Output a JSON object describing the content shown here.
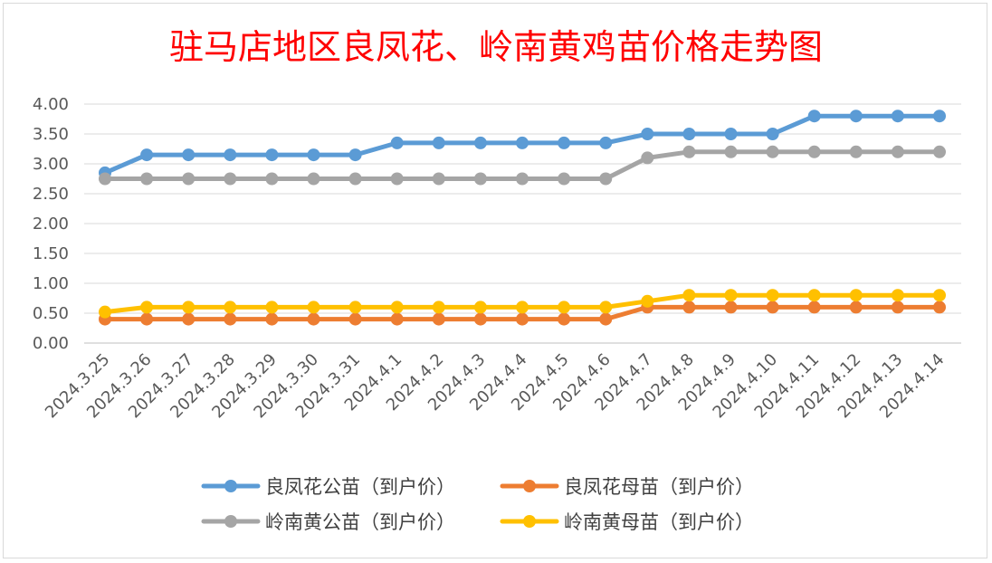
{
  "chart_data": {
    "type": "line",
    "title": "驻马店地区良凤花、岭南黄鸡苗价格走势图",
    "categories": [
      "2024.3.25",
      "2024.3.26",
      "2024.3.27",
      "2024.3.28",
      "2024.3.29",
      "2024.3.30",
      "2024.3.31",
      "2024.4.1",
      "2024.4.2",
      "2024.4.3",
      "2024.4.4",
      "2024.4.5",
      "2024.4.6",
      "2024.4.7",
      "2024.4.8",
      "2024.4.9",
      "2024.4.10",
      "2024.4.11",
      "2024.4.12",
      "2024.4.13",
      "2024.4.14"
    ],
    "ylim": [
      0,
      4
    ],
    "yticks": [
      "0.00",
      "0.50",
      "1.00",
      "1.50",
      "2.00",
      "2.50",
      "3.00",
      "3.50",
      "4.00"
    ],
    "grid": true,
    "legend_position": "bottom",
    "series": [
      {
        "name": "良凤花公苗（到户价）",
        "color": "#5b9bd5",
        "values": [
          2.85,
          3.15,
          3.15,
          3.15,
          3.15,
          3.15,
          3.15,
          3.35,
          3.35,
          3.35,
          3.35,
          3.35,
          3.35,
          3.5,
          3.5,
          3.5,
          3.5,
          3.8,
          3.8,
          3.8,
          3.8
        ]
      },
      {
        "name": "良凤花母苗（到户价）",
        "color": "#ed7d31",
        "values": [
          0.4,
          0.4,
          0.4,
          0.4,
          0.4,
          0.4,
          0.4,
          0.4,
          0.4,
          0.4,
          0.4,
          0.4,
          0.4,
          0.6,
          0.6,
          0.6,
          0.6,
          0.6,
          0.6,
          0.6,
          0.6
        ]
      },
      {
        "name": "岭南黄公苗（到户价）",
        "color": "#a5a5a5",
        "values": [
          2.75,
          2.75,
          2.75,
          2.75,
          2.75,
          2.75,
          2.75,
          2.75,
          2.75,
          2.75,
          2.75,
          2.75,
          2.75,
          3.1,
          3.2,
          3.2,
          3.2,
          3.2,
          3.2,
          3.2,
          3.2
        ]
      },
      {
        "name": "岭南黄母苗（到户价）",
        "color": "#ffc000",
        "values": [
          0.52,
          0.6,
          0.6,
          0.6,
          0.6,
          0.6,
          0.6,
          0.6,
          0.6,
          0.6,
          0.6,
          0.6,
          0.6,
          0.7,
          0.8,
          0.8,
          0.8,
          0.8,
          0.8,
          0.8,
          0.8
        ]
      }
    ]
  }
}
